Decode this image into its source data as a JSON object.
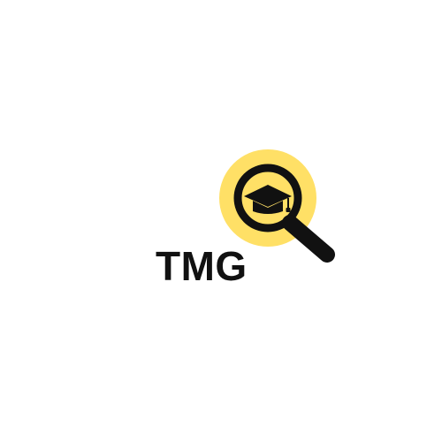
{
  "logo": {
    "text": "TMG",
    "accent_color": "#FFE066",
    "ink_color": "#111111",
    "icon": "magnifier-graduation-cap-icon"
  }
}
